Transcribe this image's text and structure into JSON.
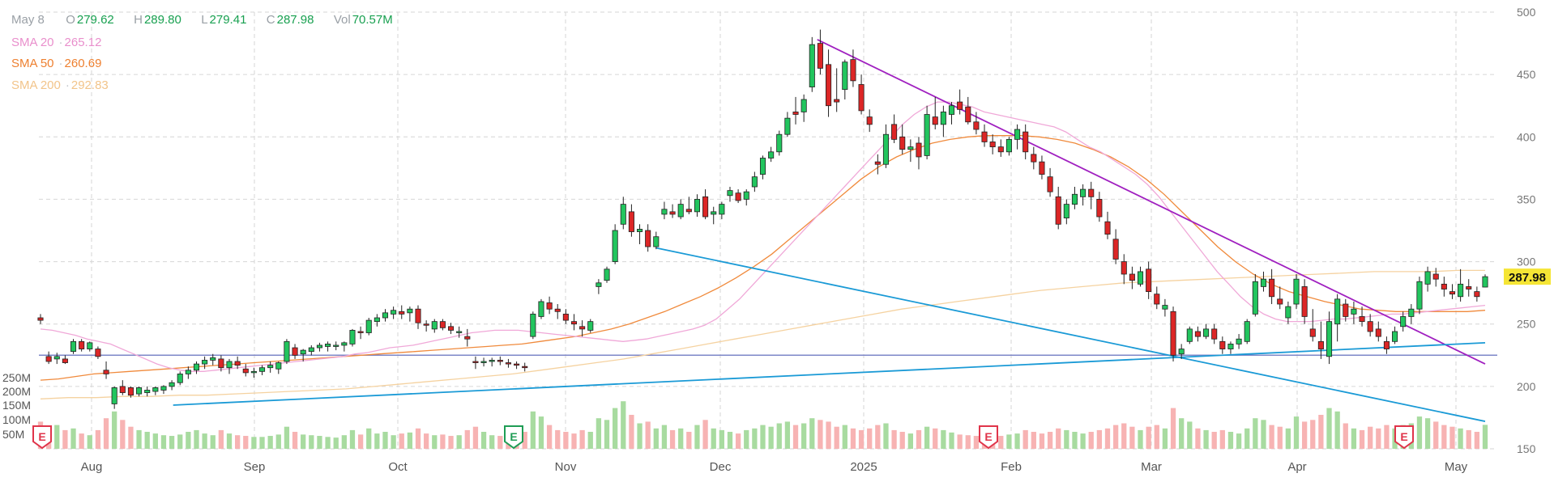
{
  "header": {
    "date": "May 8",
    "open_label": "O",
    "open": "279.62",
    "high_label": "H",
    "high": "289.80",
    "low_label": "L",
    "low": "279.41",
    "close_label": "C",
    "close": "287.98",
    "vol_label": "Vol",
    "vol": "70.57M"
  },
  "indicators": [
    {
      "name": "SMA 20",
      "value": "265.12",
      "color": "#f0a8d8"
    },
    {
      "name": "SMA 50",
      "value": "260.69",
      "color": "#f08a3c"
    },
    {
      "name": "SMA 200",
      "value": "292.83",
      "color": "#f5d2a0"
    }
  ],
  "chart_data": {
    "type": "candlestick",
    "ticker_price_tag": "287.98",
    "y_axis": {
      "ticks": [
        "500",
        "450",
        "400",
        "350",
        "300",
        "250",
        "200",
        "150"
      ],
      "ylim": [
        150,
        500
      ]
    },
    "volume_axis": {
      "ticks": [
        "250M",
        "200M",
        "150M",
        "100M",
        "50M"
      ]
    },
    "x_axis": {
      "ticks": [
        "Aug",
        "Sep",
        "Oct",
        "Nov",
        "Dec",
        "2025",
        "Feb",
        "Mar",
        "Apr",
        "May"
      ]
    },
    "earnings_markers": [
      {
        "label": "E",
        "type": "red"
      },
      {
        "label": "E",
        "type": "green"
      },
      {
        "label": "E",
        "type": "red"
      },
      {
        "label": "E",
        "type": "red"
      }
    ],
    "horizontal_line": {
      "price": 225,
      "color": "#7d87c8"
    },
    "trendlines": [
      {
        "color": "#a020c0",
        "from": [
          "2024-12-19",
          478
        ],
        "to": [
          "2025-05-09",
          218
        ]
      },
      {
        "color": "#1a9ad6",
        "from": [
          "2024-11-15",
          311
        ],
        "to": [
          "2025-05-09",
          172
        ]
      },
      {
        "color": "#1a9ad6",
        "from": [
          "2024-08-05",
          185
        ],
        "to": [
          "2025-05-09",
          235
        ]
      }
    ],
    "candles_ohlcv": [
      [
        255,
        258,
        250,
        253,
        80
      ],
      [
        224,
        228,
        218,
        220,
        60
      ],
      [
        222,
        227,
        218,
        224,
        70
      ],
      [
        222,
        225,
        218,
        219,
        55
      ],
      [
        228,
        238,
        226,
        236,
        60
      ],
      [
        236,
        238,
        228,
        230,
        45
      ],
      [
        230,
        236,
        228,
        235,
        40
      ],
      [
        230,
        232,
        222,
        224,
        55
      ],
      [
        213,
        220,
        206,
        210,
        90
      ],
      [
        186,
        200,
        182,
        199,
        110
      ],
      [
        200,
        205,
        193,
        195,
        85
      ],
      [
        199,
        200,
        191,
        193,
        65
      ],
      [
        194,
        200,
        192,
        199,
        55
      ],
      [
        195,
        200,
        192,
        197,
        50
      ],
      [
        196,
        200,
        193,
        199,
        45
      ],
      [
        197,
        201,
        194,
        200,
        40
      ],
      [
        200,
        205,
        197,
        203,
        38
      ],
      [
        203,
        212,
        201,
        210,
        42
      ],
      [
        210,
        216,
        206,
        213,
        50
      ],
      [
        213,
        220,
        210,
        218,
        55
      ],
      [
        218,
        224,
        214,
        221,
        45
      ],
      [
        221,
        226,
        217,
        223,
        40
      ],
      [
        222,
        225,
        212,
        215,
        55
      ],
      [
        215,
        222,
        210,
        220,
        45
      ],
      [
        220,
        224,
        214,
        217,
        40
      ],
      [
        214,
        218,
        208,
        211,
        38
      ],
      [
        211,
        215,
        207,
        212,
        35
      ],
      [
        212,
        217,
        209,
        215,
        35
      ],
      [
        215,
        220,
        211,
        217,
        38
      ],
      [
        214,
        220,
        210,
        219,
        42
      ],
      [
        220,
        238,
        218,
        236,
        65
      ],
      [
        231,
        234,
        222,
        225,
        50
      ],
      [
        226,
        230,
        220,
        229,
        42
      ],
      [
        228,
        233,
        225,
        231,
        40
      ],
      [
        231,
        235,
        228,
        233,
        38
      ],
      [
        232,
        236,
        228,
        234,
        35
      ],
      [
        232,
        236,
        229,
        233,
        33
      ],
      [
        233,
        236,
        228,
        235,
        40
      ],
      [
        234,
        246,
        232,
        245,
        55
      ],
      [
        244,
        248,
        238,
        243,
        42
      ],
      [
        243,
        255,
        241,
        253,
        60
      ],
      [
        252,
        258,
        248,
        255,
        45
      ],
      [
        255,
        262,
        252,
        259,
        50
      ],
      [
        258,
        264,
        254,
        261,
        40
      ],
      [
        260,
        265,
        254,
        258,
        45
      ],
      [
        259,
        264,
        252,
        262,
        48
      ],
      [
        262,
        265,
        246,
        251,
        60
      ],
      [
        250,
        253,
        244,
        249,
        45
      ],
      [
        246,
        254,
        243,
        252,
        40
      ],
      [
        252,
        254,
        245,
        247,
        42
      ],
      [
        248,
        251,
        242,
        245,
        38
      ],
      [
        244,
        248,
        239,
        244,
        40
      ],
      [
        240,
        246,
        232,
        238,
        55
      ],
      [
        220,
        224,
        214,
        219,
        65
      ],
      [
        219,
        223,
        216,
        220,
        50
      ],
      [
        220,
        223,
        216,
        221,
        40
      ],
      [
        221,
        224,
        217,
        220,
        38
      ],
      [
        219,
        222,
        215,
        218,
        40
      ],
      [
        218,
        220,
        214,
        217,
        45
      ],
      [
        216,
        219,
        212,
        215,
        50
      ],
      [
        240,
        260,
        238,
        258,
        110
      ],
      [
        256,
        270,
        254,
        268,
        95
      ],
      [
        267,
        272,
        258,
        262,
        70
      ],
      [
        262,
        266,
        254,
        260,
        55
      ],
      [
        258,
        262,
        250,
        253,
        50
      ],
      [
        252,
        258,
        245,
        250,
        45
      ],
      [
        248,
        253,
        240,
        246,
        55
      ],
      [
        245,
        254,
        243,
        252,
        50
      ],
      [
        280,
        286,
        274,
        283,
        90
      ],
      [
        285,
        296,
        283,
        294,
        85
      ],
      [
        300,
        330,
        298,
        325,
        120
      ],
      [
        330,
        352,
        326,
        346,
        140
      ],
      [
        340,
        346,
        320,
        324,
        100
      ],
      [
        324,
        330,
        314,
        326,
        75
      ],
      [
        325,
        330,
        308,
        312,
        80
      ],
      [
        312,
        324,
        310,
        320,
        60
      ],
      [
        338,
        348,
        334,
        342,
        70
      ],
      [
        340,
        346,
        335,
        338,
        55
      ],
      [
        336,
        350,
        334,
        346,
        60
      ],
      [
        342,
        352,
        338,
        340,
        50
      ],
      [
        340,
        354,
        336,
        350,
        70
      ],
      [
        352,
        358,
        334,
        336,
        85
      ],
      [
        338,
        344,
        330,
        340,
        60
      ],
      [
        338,
        348,
        334,
        346,
        55
      ],
      [
        353,
        360,
        348,
        357,
        50
      ],
      [
        355,
        358,
        347,
        349,
        45
      ],
      [
        350,
        358,
        345,
        356,
        55
      ],
      [
        360,
        372,
        356,
        368,
        60
      ],
      [
        370,
        385,
        366,
        383,
        70
      ],
      [
        383,
        392,
        380,
        388,
        65
      ],
      [
        388,
        405,
        385,
        402,
        75
      ],
      [
        402,
        420,
        400,
        415,
        80
      ],
      [
        420,
        432,
        410,
        418,
        70
      ],
      [
        420,
        434,
        412,
        430,
        75
      ],
      [
        440,
        480,
        436,
        474,
        90
      ],
      [
        475,
        486,
        450,
        455,
        85
      ],
      [
        458,
        470,
        416,
        425,
        80
      ],
      [
        430,
        455,
        420,
        428,
        65
      ],
      [
        438,
        462,
        430,
        460,
        70
      ],
      [
        462,
        470,
        440,
        445,
        60
      ],
      [
        442,
        450,
        418,
        421,
        55
      ],
      [
        416,
        422,
        404,
        410,
        60
      ],
      [
        380,
        386,
        370,
        378,
        70
      ],
      [
        378,
        410,
        375,
        402,
        75
      ],
      [
        410,
        418,
        395,
        398,
        55
      ],
      [
        400,
        410,
        386,
        390,
        50
      ],
      [
        390,
        398,
        380,
        392,
        45
      ],
      [
        395,
        400,
        374,
        384,
        55
      ],
      [
        385,
        425,
        382,
        418,
        65
      ],
      [
        416,
        432,
        406,
        410,
        60
      ],
      [
        410,
        425,
        400,
        420,
        55
      ],
      [
        418,
        428,
        410,
        425,
        48
      ],
      [
        428,
        438,
        418,
        422,
        42
      ],
      [
        424,
        432,
        410,
        412,
        40
      ],
      [
        412,
        420,
        402,
        406,
        38
      ],
      [
        404,
        410,
        392,
        396,
        45
      ],
      [
        396,
        402,
        386,
        392,
        40
      ],
      [
        392,
        398,
        384,
        388,
        38
      ],
      [
        388,
        400,
        385,
        398,
        42
      ],
      [
        398,
        410,
        390,
        406,
        45
      ],
      [
        404,
        410,
        382,
        388,
        55
      ],
      [
        386,
        392,
        374,
        380,
        50
      ],
      [
        380,
        385,
        366,
        370,
        45
      ],
      [
        368,
        375,
        352,
        356,
        50
      ],
      [
        352,
        360,
        326,
        330,
        60
      ],
      [
        335,
        350,
        330,
        346,
        55
      ],
      [
        346,
        360,
        342,
        354,
        50
      ],
      [
        352,
        362,
        345,
        358,
        45
      ],
      [
        358,
        364,
        342,
        352,
        50
      ],
      [
        350,
        356,
        332,
        336,
        55
      ],
      [
        332,
        340,
        318,
        322,
        60
      ],
      [
        318,
        326,
        298,
        302,
        70
      ],
      [
        300,
        306,
        282,
        290,
        75
      ],
      [
        290,
        296,
        278,
        285,
        65
      ],
      [
        282,
        296,
        280,
        292,
        55
      ],
      [
        294,
        300,
        270,
        276,
        65
      ],
      [
        274,
        280,
        262,
        266,
        70
      ],
      [
        262,
        270,
        256,
        265,
        60
      ],
      [
        260,
        264,
        220,
        225,
        120
      ],
      [
        226,
        234,
        222,
        230,
        90
      ],
      [
        236,
        248,
        234,
        246,
        80
      ],
      [
        244,
        248,
        236,
        240,
        60
      ],
      [
        240,
        250,
        238,
        246,
        55
      ],
      [
        246,
        250,
        234,
        238,
        50
      ],
      [
        236,
        240,
        226,
        230,
        55
      ],
      [
        230,
        236,
        226,
        234,
        50
      ],
      [
        234,
        242,
        230,
        238,
        45
      ],
      [
        236,
        254,
        234,
        252,
        60
      ],
      [
        258,
        290,
        256,
        284,
        90
      ],
      [
        280,
        292,
        276,
        286,
        85
      ],
      [
        286,
        294,
        266,
        272,
        70
      ],
      [
        270,
        280,
        262,
        266,
        65
      ],
      [
        255,
        268,
        250,
        264,
        60
      ],
      [
        266,
        290,
        262,
        286,
        95
      ],
      [
        280,
        286,
        250,
        256,
        80
      ],
      [
        246,
        262,
        236,
        240,
        85
      ],
      [
        236,
        252,
        222,
        230,
        100
      ],
      [
        224,
        260,
        218,
        252,
        120
      ],
      [
        250,
        274,
        236,
        270,
        110
      ],
      [
        266,
        270,
        252,
        256,
        75
      ],
      [
        258,
        268,
        250,
        262,
        60
      ],
      [
        256,
        264,
        248,
        252,
        55
      ],
      [
        252,
        258,
        240,
        244,
        65
      ],
      [
        246,
        252,
        236,
        240,
        60
      ],
      [
        236,
        240,
        226,
        230,
        70
      ],
      [
        236,
        248,
        234,
        244,
        60
      ],
      [
        248,
        260,
        244,
        256,
        70
      ],
      [
        256,
        266,
        250,
        262,
        75
      ],
      [
        262,
        288,
        258,
        284,
        95
      ],
      [
        282,
        296,
        276,
        292,
        90
      ],
      [
        290,
        295,
        280,
        286,
        80
      ],
      [
        282,
        288,
        272,
        278,
        70
      ],
      [
        276,
        282,
        270,
        274,
        65
      ],
      [
        272,
        294,
        268,
        282,
        60
      ],
      [
        280,
        286,
        272,
        278,
        55
      ],
      [
        276,
        280,
        268,
        272,
        50
      ],
      [
        279.62,
        289.8,
        279.41,
        287.98,
        70.57
      ]
    ],
    "sma20": [
      246,
      245,
      243,
      241,
      238,
      236,
      234,
      230,
      226,
      222,
      218,
      215,
      213,
      212,
      212,
      213,
      214,
      215,
      216,
      217,
      218,
      219,
      220,
      221,
      222,
      223,
      224,
      226,
      227,
      229,
      231,
      232,
      233,
      235,
      237,
      239,
      241,
      243,
      244,
      245,
      245,
      245,
      244,
      243,
      242,
      241,
      240,
      239,
      238,
      237,
      236,
      237,
      238,
      240,
      242,
      244,
      246,
      249,
      254,
      262,
      270,
      280,
      290,
      300,
      310,
      320,
      330,
      340,
      350,
      360,
      370,
      380,
      390,
      400,
      410,
      418,
      424,
      428,
      428,
      426,
      424,
      420,
      418,
      416,
      414,
      412,
      410,
      408,
      404,
      398,
      392,
      388,
      382,
      376,
      370,
      362,
      352,
      340,
      328,
      316,
      304,
      292,
      282,
      272,
      264,
      258,
      254,
      252,
      252,
      252,
      253,
      254,
      254,
      255,
      256,
      257,
      258,
      258,
      259,
      260,
      261,
      262,
      263,
      264,
      265
    ],
    "sma50": [
      205,
      206,
      208,
      210,
      211,
      212,
      213,
      214,
      215,
      216,
      217,
      218,
      219,
      220,
      221,
      222,
      223,
      224,
      225,
      226,
      227,
      228,
      229,
      230,
      231,
      232,
      233,
      234,
      236,
      238,
      240,
      243,
      246,
      250,
      255,
      260,
      266,
      272,
      279,
      287,
      296,
      306,
      318,
      330,
      342,
      354,
      366,
      376,
      384,
      390,
      395,
      398,
      400,
      401,
      401,
      401,
      400,
      398,
      395,
      390,
      384,
      376,
      366,
      354,
      340,
      326,
      312,
      300,
      290,
      282,
      276,
      272,
      268,
      265,
      262,
      261,
      260,
      260,
      260,
      260,
      260,
      261
    ],
    "sma200": [
      190,
      191,
      191,
      192,
      192,
      193,
      193,
      194,
      195,
      196,
      197,
      198,
      200,
      202,
      204,
      206,
      208,
      210,
      213,
      216,
      219,
      222,
      226,
      230,
      234,
      238,
      242,
      246,
      250,
      254,
      258,
      262,
      265,
      268,
      271,
      274,
      277,
      279,
      281,
      283,
      284,
      285,
      286,
      287,
      288,
      289,
      290,
      291,
      292,
      292,
      292,
      293,
      293
    ]
  }
}
